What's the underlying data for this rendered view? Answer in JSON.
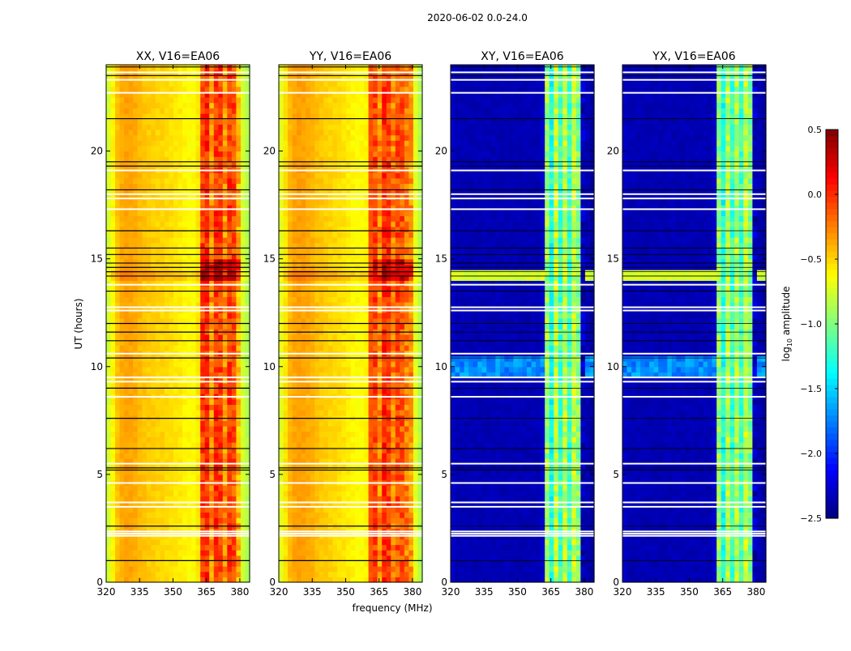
{
  "chart_data": {
    "type": "heatmap",
    "suptitle": "2020-06-02 0.0-24.0",
    "xlabel": "frequency (MHz)",
    "ylabel": "UT (hours)",
    "xlim": [
      320,
      384.4
    ],
    "ylim": [
      0,
      24
    ],
    "xticks": [
      "320",
      "335",
      "350",
      "365",
      "380"
    ],
    "yticks": [
      "0",
      "5",
      "10",
      "15",
      "20"
    ],
    "colorbar": {
      "label": "log10 amplitude",
      "range": [
        -2.5,
        0.5
      ],
      "ticks": [
        "0.5",
        "0.0",
        "−0.5",
        "−1.0",
        "−1.5",
        "−2.0",
        "−2.5"
      ],
      "colormap": "jet"
    },
    "freq_bin_centers_mhz": [
      321,
      323,
      325,
      327,
      329,
      331,
      333,
      335,
      337,
      339,
      341,
      343,
      345,
      347,
      349,
      351,
      353,
      355,
      357,
      359,
      361,
      363,
      365,
      367,
      369,
      371,
      373,
      375,
      377,
      379,
      381,
      383
    ],
    "panels": [
      {
        "title": "XX, V16=EA06",
        "freq_profile": [
          -0.75,
          -0.6,
          -0.45,
          -0.38,
          -0.35,
          -0.36,
          -0.38,
          -0.42,
          -0.45,
          -0.47,
          -0.48,
          -0.5,
          -0.5,
          -0.52,
          -0.53,
          -0.55,
          -0.57,
          -0.6,
          -0.62,
          -0.62,
          -0.55,
          -0.05,
          0.0,
          -0.3,
          -0.02,
          -0.05,
          -0.3,
          -0.05,
          -0.1,
          -0.4,
          -0.75,
          -0.85
        ]
      },
      {
        "title": "YY, V16=EA06",
        "freq_profile": [
          -0.7,
          -0.55,
          -0.42,
          -0.36,
          -0.34,
          -0.35,
          -0.37,
          -0.4,
          -0.44,
          -0.46,
          -0.48,
          -0.5,
          -0.51,
          -0.53,
          -0.55,
          -0.57,
          -0.6,
          -0.62,
          -0.62,
          -0.6,
          -0.12,
          -0.08,
          -0.3,
          0.0,
          -0.02,
          -0.25,
          -0.1,
          -0.12,
          -0.25,
          -0.3,
          -0.7,
          -0.85
        ]
      },
      {
        "title": "XY, V16=EA06",
        "freq_profile": [
          -2.3,
          -2.35,
          -2.35,
          -2.35,
          -2.35,
          -2.35,
          -2.35,
          -2.35,
          -2.35,
          -2.35,
          -2.35,
          -2.35,
          -2.35,
          -2.35,
          -2.35,
          -2.35,
          -2.35,
          -2.35,
          -2.35,
          -2.35,
          -2.3,
          -0.9,
          -1.3,
          -0.8,
          -1.2,
          -0.8,
          -1.2,
          -0.8,
          -1.0,
          -2.3,
          -2.35,
          -2.4
        ]
      },
      {
        "title": "YX, V16=EA06",
        "freq_profile": [
          -2.3,
          -2.35,
          -2.35,
          -2.35,
          -2.35,
          -2.35,
          -2.35,
          -2.35,
          -2.35,
          -2.35,
          -2.35,
          -2.35,
          -2.35,
          -2.35,
          -2.35,
          -2.35,
          -2.35,
          -2.35,
          -2.35,
          -2.35,
          -2.3,
          -0.95,
          -1.3,
          -0.85,
          -1.2,
          -0.85,
          -1.2,
          -0.8,
          -1.0,
          -2.3,
          -2.35,
          -2.4
        ]
      }
    ],
    "flagged_white_hours": [
      2.15,
      2.25,
      2.35,
      3.5,
      3.7,
      4.6,
      5.5,
      8.6,
      9.3,
      9.5,
      10.6,
      12.6,
      12.75,
      13.8,
      17.3,
      17.8,
      18.0,
      19.1,
      22.7,
      23.3,
      23.65
    ],
    "flagged_black_hours": [
      1.0,
      2.6,
      5.2,
      5.3,
      6.2,
      7.6,
      9.0,
      10.4,
      11.2,
      11.6,
      12.0,
      13.5,
      14.2,
      14.4,
      14.6,
      14.8,
      15.2,
      15.5,
      16.3,
      18.2,
      19.3,
      19.5,
      21.5,
      23.5,
      23.9
    ]
  }
}
